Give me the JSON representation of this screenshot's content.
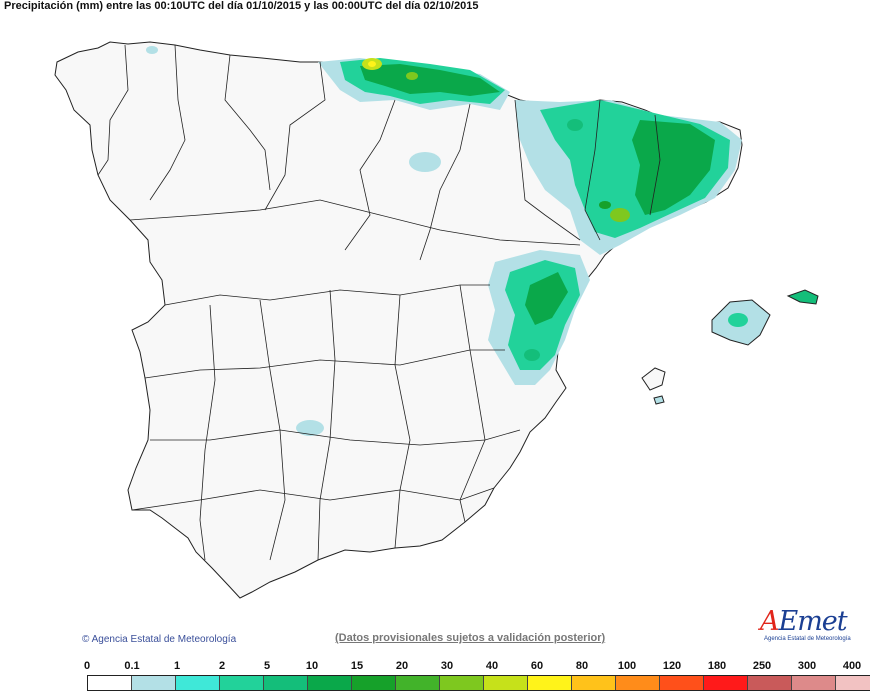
{
  "title": "Precipitación (mm) entre las 00:10UTC del día 01/10/2015 y las 00:00UTC del día 02/10/2015",
  "copyright": "Agencia Estatal de Meteorología",
  "disclaimer": "(Datos provisionales sujetos a validación posterior)",
  "logo": {
    "mark_a": "A",
    "mark_rest": "Emet",
    "subtitle": "Agencia Estatal de Meteorología"
  },
  "legend": {
    "labels": [
      "0",
      "0.1",
      "1",
      "2",
      "5",
      "10",
      "15",
      "20",
      "30",
      "40",
      "60",
      "80",
      "100",
      "120",
      "180",
      "250",
      "300",
      "400"
    ],
    "colors": [
      "#ffffff",
      "#b3e0e6",
      "#3fe8d8",
      "#22d29a",
      "#14be7a",
      "#0aa84a",
      "#16a12a",
      "#42b32a",
      "#7ec81f",
      "#c6e11a",
      "#fff31a",
      "#ffc21a",
      "#ff8c1a",
      "#ff501a",
      "#ff1a1a",
      "#c95a5a",
      "#dd8a8a",
      "#f2c2c2"
    ]
  },
  "colors": {
    "land": "#f8f8f8",
    "border": "#222222",
    "sea": "#ffffff"
  }
}
